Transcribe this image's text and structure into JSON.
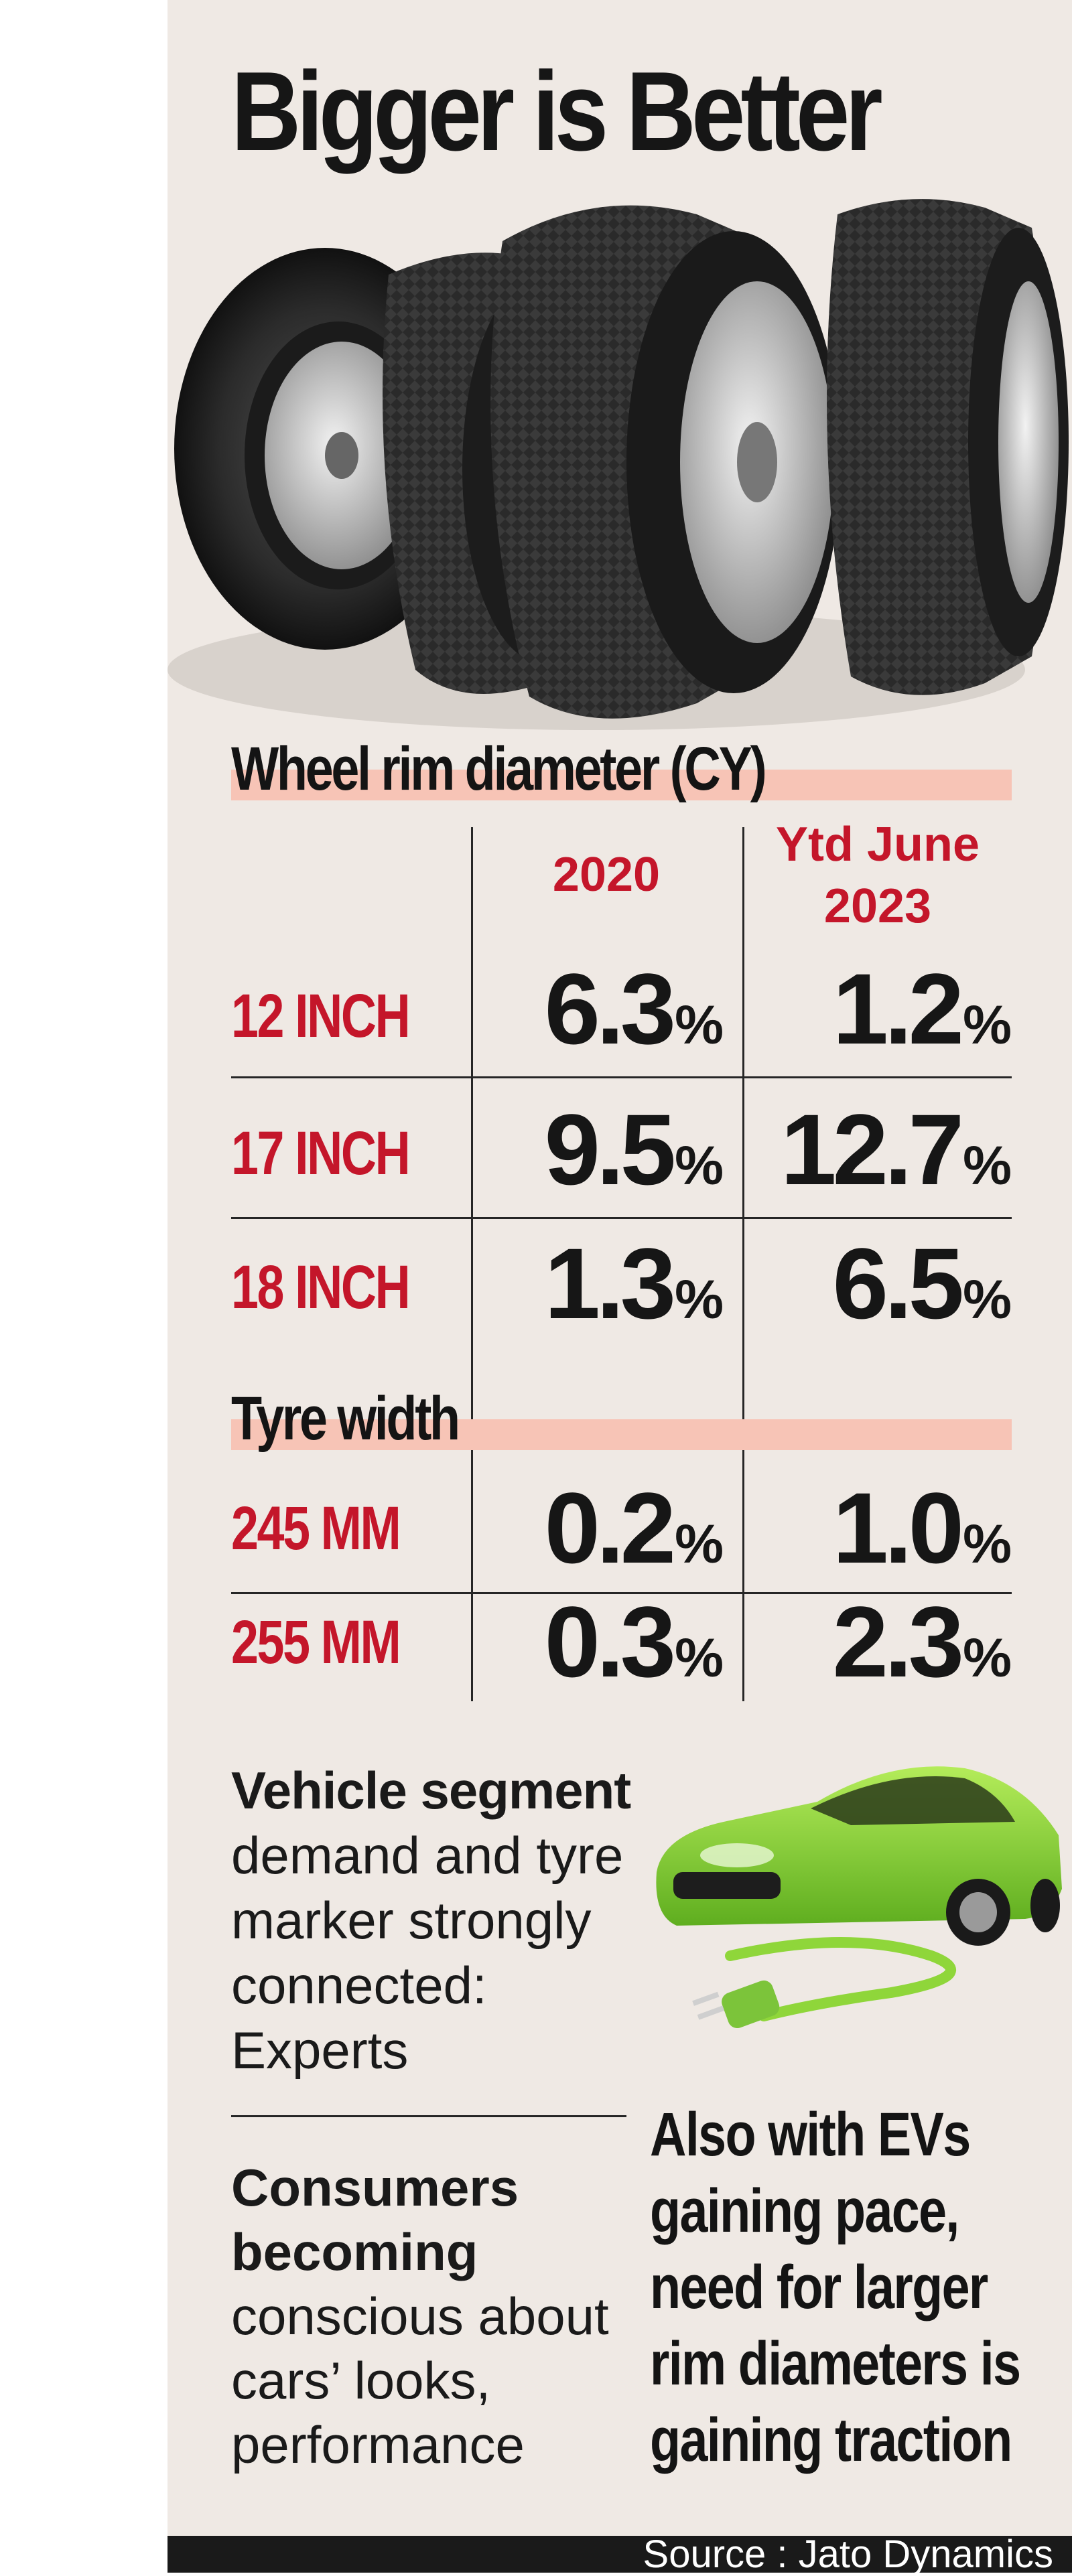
{
  "title": "Bigger is Better",
  "rim_section": {
    "heading": "Wheel rim diameter (CY)",
    "columns": [
      "2020",
      "Ytd June\n2023"
    ],
    "rows": [
      {
        "label": "12 INCH",
        "v2020": "6.3",
        "v2023": "1.2"
      },
      {
        "label": "17 INCH",
        "v2020": "9.5",
        "v2023": "12.7"
      },
      {
        "label": "18 INCH",
        "v2020": "1.3",
        "v2023": "6.5"
      }
    ]
  },
  "tyre_section": {
    "heading": "Tyre width",
    "rows": [
      {
        "label": "245 MM",
        "v2020": "0.2",
        "v2023": "1.0"
      },
      {
        "label": "255 MM",
        "v2020": "0.3",
        "v2023": "2.3"
      }
    ]
  },
  "percent_sign": "%",
  "notes": {
    "vehicle_lead": "Vehicle segment",
    "vehicle_text": "demand and tyre marker strongly connected: Experts",
    "consumer_lead": "Consumers becoming",
    "consumer_text": "conscious about cars’ looks, performance",
    "ev_lines": [
      "Also with EVs",
      "gaining pace,",
      "need for larger",
      "rim diameters is",
      "gaining traction"
    ]
  },
  "source": "Source : Jato Dynamics",
  "colors": {
    "accent_red": "#c4162a",
    "highlight": "#f7c4b6",
    "panel": "#efe9e4",
    "car_green": "#8fd63a"
  },
  "icons": [
    "tyres-illustration",
    "green-ev-car-illustration",
    "charging-plug-icon"
  ]
}
